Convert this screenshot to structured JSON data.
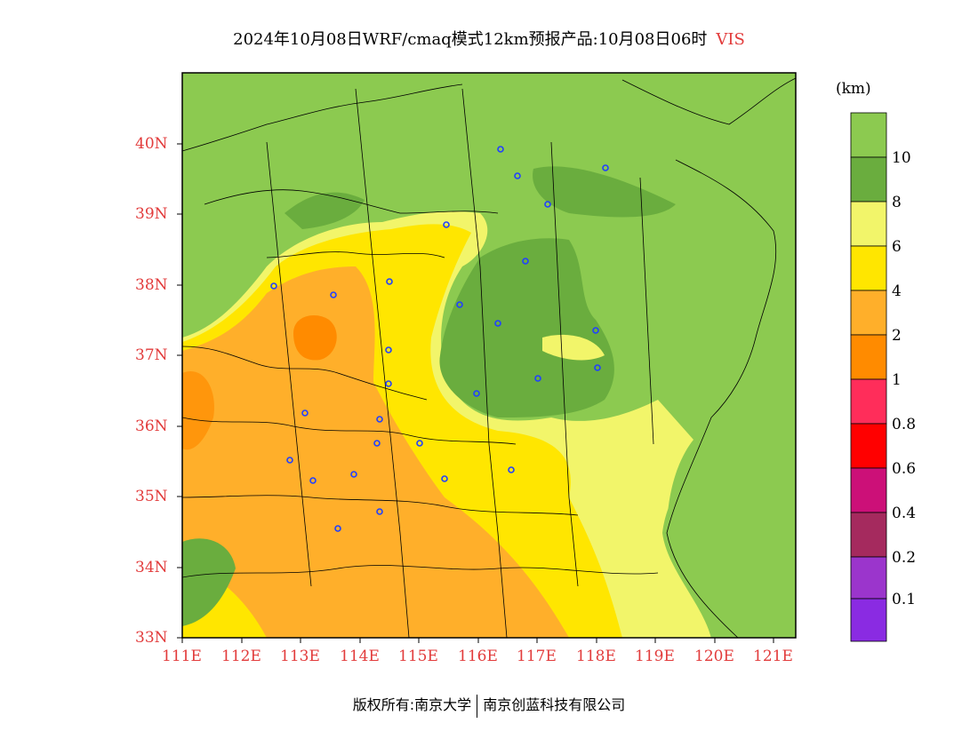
{
  "title": {
    "main": "2024年10月08日WRF/cmaq模式12km预报产品:10月08日06时",
    "variable": "VIS"
  },
  "unit_label": "(km)",
  "lat_labels": [
    "40N",
    "39N",
    "38N",
    "37N",
    "36N",
    "35N",
    "34N",
    "33N"
  ],
  "lon_labels": [
    "111E",
    "112E",
    "113E",
    "114E",
    "115E",
    "116E",
    "117E",
    "118E",
    "119E",
    "120E",
    "121E"
  ],
  "legend": {
    "colors": [
      "#8cca50",
      "#6aad3e",
      "#f2f56a",
      "#ffe600",
      "#ffaf2a",
      "#ff8b00",
      "#ff2d5a",
      "#ff0000",
      "#cc1078",
      "#a52a5e",
      "#9b35cc",
      "#8a2be2"
    ],
    "labels": [
      "10",
      "8",
      "6",
      "4",
      "2",
      "1",
      "0.8",
      "0.6",
      "0.4",
      "0.2",
      "0.1"
    ]
  },
  "footer": {
    "left": "版权所有:南京大学",
    "right": "南京创蓝科技有限公司"
  }
}
